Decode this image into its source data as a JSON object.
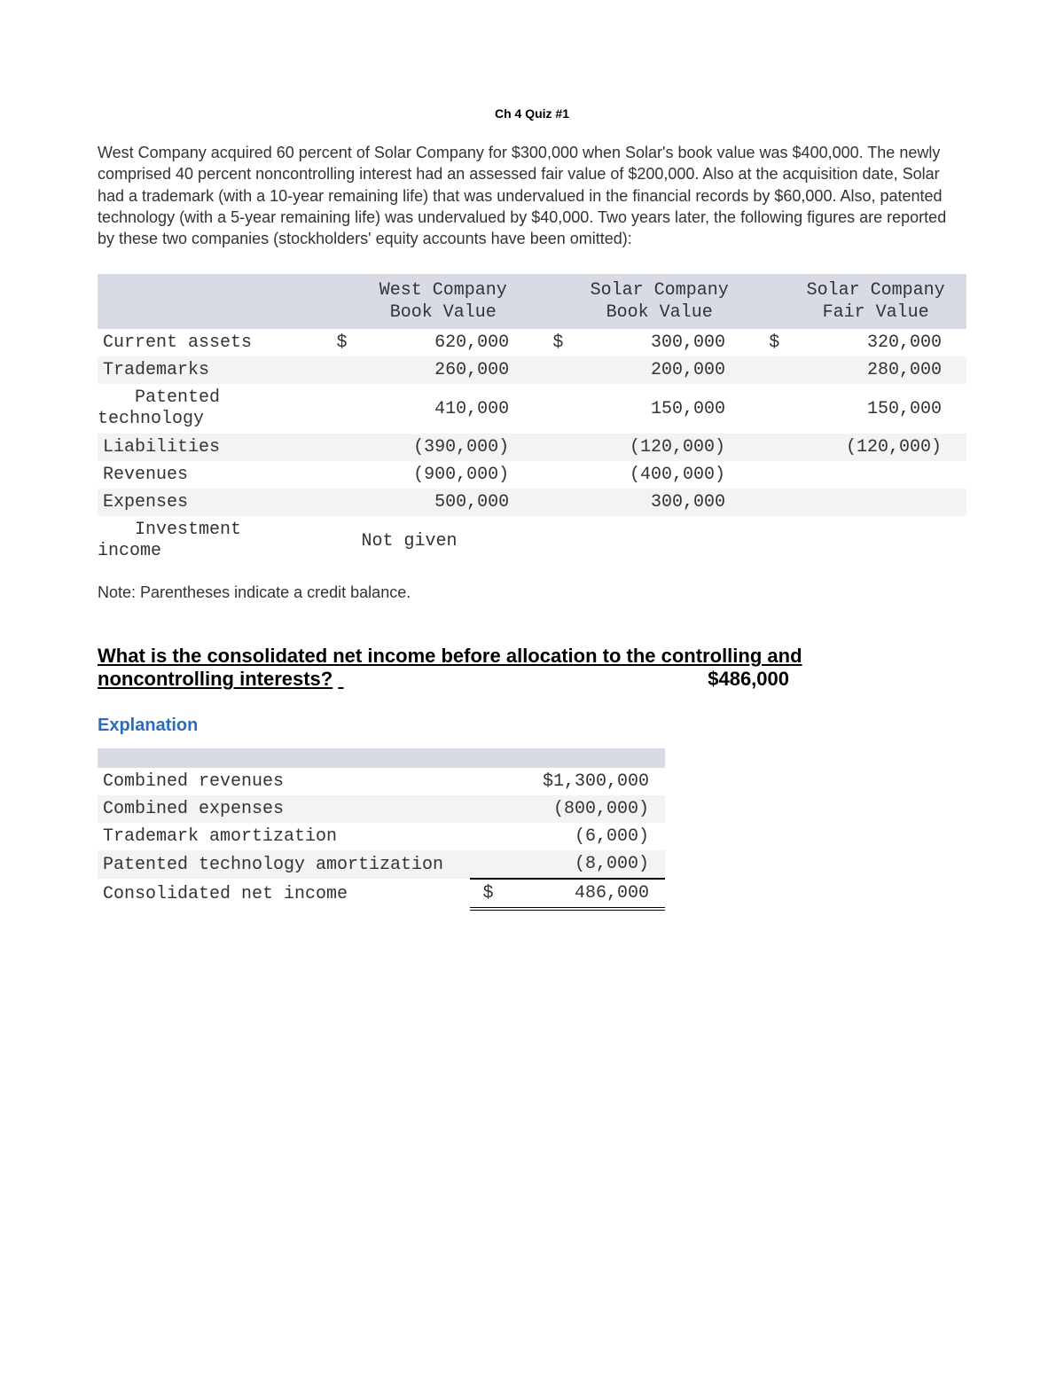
{
  "colors": {
    "header_bg": "#d8dbe6",
    "row_alt_bg": "#f3f3f3",
    "text": "#333333",
    "link_blue": "#2d6db5",
    "black": "#000000",
    "white": "#ffffff"
  },
  "title": "Ch 4 Quiz #1",
  "paragraph": "West Company acquired 60 percent of Solar Company for $300,000 when Solar's book value was $400,000. The newly comprised 40 percent noncontrolling interest had an assessed fair value of $200,000. Also at the acquisition date, Solar had a trademark (with a 10-year remaining life) that was undervalued in the financial records by $60,000. Also, patented technology (with a 5-year remaining life) was undervalued by $40,000. Two years later, the following figures are reported by these two companies (stockholders' equity accounts have been omitted):",
  "table": {
    "columns": [
      {
        "line1": "West Company",
        "line2": "Book Value"
      },
      {
        "line1": "Solar Company",
        "line2": "Book Value"
      },
      {
        "line1": "Solar Company",
        "line2": "Fair Value"
      }
    ],
    "rows": [
      {
        "label": "Current assets",
        "sym1": "$",
        "v1": "620,000",
        "sym2": "$",
        "v2": "300,000",
        "sym3": "$",
        "v3": "320,000"
      },
      {
        "label": "Trademarks",
        "sym1": "",
        "v1": "260,000",
        "sym2": "",
        "v2": "200,000",
        "sym3": "",
        "v3": "280,000"
      },
      {
        "label": "Patented technology",
        "sym1": "",
        "v1": "410,000",
        "sym2": "",
        "v2": "150,000",
        "sym3": "",
        "v3": "150,000",
        "hanging": true
      },
      {
        "label": "Liabilities",
        "sym1": "",
        "v1": "(390,000)",
        "sym2": "",
        "v2": "(120,000)",
        "sym3": "",
        "v3": "(120,000)"
      },
      {
        "label": "Revenues",
        "sym1": "",
        "v1": "(900,000)",
        "sym2": "",
        "v2": "(400,000)",
        "sym3": "",
        "v3": ""
      },
      {
        "label": "Expenses",
        "sym1": "",
        "v1": "500,000",
        "sym2": "",
        "v2": "300,000",
        "sym3": "",
        "v3": ""
      },
      {
        "label": "Investment income",
        "sym1": "",
        "v1": "Not given",
        "v1_align": "left",
        "sym2": "",
        "v2": "",
        "sym3": "",
        "v3": "",
        "hanging": true
      }
    ]
  },
  "note": "Note: Parentheses indicate a credit balance.",
  "question": {
    "line1": "What is the consolidated net income before allocation to the controlling and",
    "line2_underlined": "noncontrolling interests?",
    "answer": "$486,000"
  },
  "explanation": {
    "heading": "Explanation",
    "rows": [
      {
        "label": "Combined revenues",
        "sym": "",
        "value": "$1,300,000",
        "shade": "odd"
      },
      {
        "label": "Combined expenses",
        "sym": "",
        "value": "(800,000)",
        "shade": "even"
      },
      {
        "label": "Trademark amortization",
        "sym": "",
        "value": "(6,000)",
        "shade": "odd"
      },
      {
        "label": "Patented technology amortization",
        "sym": "",
        "value": "(8,000)",
        "shade": "even",
        "ruleBelow": true
      },
      {
        "label": "Consolidated net income",
        "sym": "$",
        "value": "486,000",
        "shade": "odd",
        "total": true
      }
    ]
  }
}
